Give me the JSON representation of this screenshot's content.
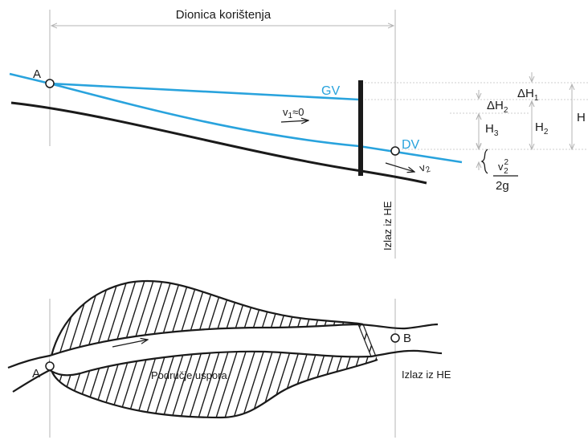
{
  "colors": {
    "water_line": "#29a3dd",
    "riverbed": "#1a1a1a",
    "dimension": "#b5b5b5"
  },
  "profile": {
    "span_label": "Dionica korištenja",
    "point_a": "A",
    "upper_water_label": "GV",
    "lower_water_label": "DV",
    "velocity_1": {
      "symbol": "v",
      "subscript": "1",
      "suffix": "≈0"
    },
    "velocity_2": {
      "symbol": "v",
      "subscript": "2"
    },
    "outlet_label": "Izlaz iz HE",
    "delta_h1": {
      "symbol": "ΔH",
      "subscript": "1"
    },
    "delta_h2": {
      "symbol": "ΔH",
      "subscript": "2"
    },
    "h3": {
      "symbol": "H",
      "subscript": "3"
    },
    "h2": {
      "symbol": "H",
      "subscript": "2"
    },
    "h": "H",
    "velocity_head": {
      "numerator": "v",
      "numerator_sup": "2",
      "numerator_sub": "2",
      "denominator": "2g"
    }
  },
  "plan": {
    "point_a": "A",
    "point_b": "B",
    "reservoir_label": "Područje uspora",
    "outlet_label": "Izlaz iz HE"
  }
}
